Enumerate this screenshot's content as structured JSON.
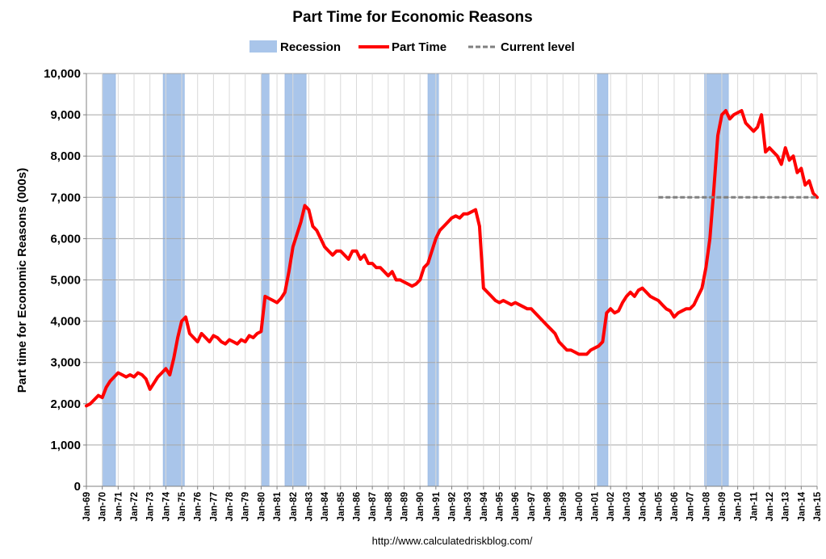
{
  "chart_data": {
    "type": "line",
    "title": "Part Time for Economic Reasons",
    "ylabel": "Part time for Economic Reasons (000s)",
    "xlabel": "",
    "ylim": [
      0,
      10000
    ],
    "xlim": [
      "1969-01",
      "2015-01"
    ],
    "yticks": [
      "0",
      "1,000",
      "2,000",
      "3,000",
      "4,000",
      "5,000",
      "6,000",
      "7,000",
      "8,000",
      "9,000",
      "10,000"
    ],
    "ytick_values": [
      0,
      1000,
      2000,
      3000,
      4000,
      5000,
      6000,
      7000,
      8000,
      9000,
      10000
    ],
    "xticks": [
      "Jan-69",
      "Jan-70",
      "Jan-71",
      "Jan-72",
      "Jan-73",
      "Jan-74",
      "Jan-75",
      "Jan-76",
      "Jan-77",
      "Jan-78",
      "Jan-79",
      "Jan-80",
      "Jan-81",
      "Jan-82",
      "Jan-83",
      "Jan-84",
      "Jan-85",
      "Jan-86",
      "Jan-87",
      "Jan-88",
      "Jan-89",
      "Jan-90",
      "Jan-91",
      "Jan-92",
      "Jan-93",
      "Jan-94",
      "Jan-95",
      "Jan-96",
      "Jan-97",
      "Jan-98",
      "Jan-99",
      "Jan-00",
      "Jan-01",
      "Jan-02",
      "Jan-03",
      "Jan-04",
      "Jan-05",
      "Jan-06",
      "Jan-07",
      "Jan-08",
      "Jan-09",
      "Jan-10",
      "Jan-11",
      "Jan-12",
      "Jan-13",
      "Jan-14",
      "Jan-15"
    ],
    "grid": true,
    "legend": {
      "placement": "top",
      "entries": [
        "Recession",
        "Part Time",
        "Current level"
      ]
    },
    "colors": {
      "recession": "#a9c5ea",
      "recession_edge": "#8fb2e0",
      "part_time": "#ff0000",
      "current_level": "#808080",
      "grid": "#bfbfbf"
    },
    "recessions": [
      {
        "start": "1970-01",
        "end": "1970-11"
      },
      {
        "start": "1973-11",
        "end": "1975-03"
      },
      {
        "start": "1980-01",
        "end": "1980-07"
      },
      {
        "start": "1981-07",
        "end": "1982-11"
      },
      {
        "start": "1990-07",
        "end": "1991-03"
      },
      {
        "start": "2001-03",
        "end": "2001-11"
      },
      {
        "start": "2007-12",
        "end": "2009-06"
      }
    ],
    "series": [
      {
        "name": "Part Time",
        "x": [
          "1969-01",
          "1969-04",
          "1969-07",
          "1969-10",
          "1970-01",
          "1970-04",
          "1970-07",
          "1970-10",
          "1971-01",
          "1971-04",
          "1971-07",
          "1971-10",
          "1972-01",
          "1972-04",
          "1972-07",
          "1972-10",
          "1973-01",
          "1973-04",
          "1973-07",
          "1973-10",
          "1974-01",
          "1974-04",
          "1974-07",
          "1974-10",
          "1975-01",
          "1975-04",
          "1975-07",
          "1975-10",
          "1976-01",
          "1976-04",
          "1976-07",
          "1976-10",
          "1977-01",
          "1977-04",
          "1977-07",
          "1977-10",
          "1978-01",
          "1978-04",
          "1978-07",
          "1978-10",
          "1979-01",
          "1979-04",
          "1979-07",
          "1979-10",
          "1980-01",
          "1980-04",
          "1980-07",
          "1980-10",
          "1981-01",
          "1981-04",
          "1981-07",
          "1981-10",
          "1982-01",
          "1982-04",
          "1982-07",
          "1982-10",
          "1983-01",
          "1983-04",
          "1983-07",
          "1983-10",
          "1984-01",
          "1984-04",
          "1984-07",
          "1984-10",
          "1985-01",
          "1985-04",
          "1985-07",
          "1985-10",
          "1986-01",
          "1986-04",
          "1986-07",
          "1986-10",
          "1987-01",
          "1987-04",
          "1987-07",
          "1987-10",
          "1988-01",
          "1988-04",
          "1988-07",
          "1988-10",
          "1989-01",
          "1989-04",
          "1989-07",
          "1989-10",
          "1990-01",
          "1990-04",
          "1990-07",
          "1990-10",
          "1991-01",
          "1991-04",
          "1991-07",
          "1991-10",
          "1992-01",
          "1992-04",
          "1992-07",
          "1992-10",
          "1993-01",
          "1993-04",
          "1993-07",
          "1993-10",
          "1994-01",
          "1994-04",
          "1994-07",
          "1994-10",
          "1995-01",
          "1995-04",
          "1995-07",
          "1995-10",
          "1996-01",
          "1996-04",
          "1996-07",
          "1996-10",
          "1997-01",
          "1997-04",
          "1997-07",
          "1997-10",
          "1998-01",
          "1998-04",
          "1998-07",
          "1998-10",
          "1999-01",
          "1999-04",
          "1999-07",
          "1999-10",
          "2000-01",
          "2000-04",
          "2000-07",
          "2000-10",
          "2001-01",
          "2001-04",
          "2001-07",
          "2001-10",
          "2002-01",
          "2002-04",
          "2002-07",
          "2002-10",
          "2003-01",
          "2003-04",
          "2003-07",
          "2003-10",
          "2004-01",
          "2004-04",
          "2004-07",
          "2004-10",
          "2005-01",
          "2005-04",
          "2005-07",
          "2005-10",
          "2006-01",
          "2006-04",
          "2006-07",
          "2006-10",
          "2007-01",
          "2007-04",
          "2007-07",
          "2007-10",
          "2008-01",
          "2008-04",
          "2008-07",
          "2008-10",
          "2009-01",
          "2009-04",
          "2009-07",
          "2009-10",
          "2010-01",
          "2010-04",
          "2010-07",
          "2010-10",
          "2011-01",
          "2011-04",
          "2011-07",
          "2011-10",
          "2012-01",
          "2012-04",
          "2012-07",
          "2012-10",
          "2013-01",
          "2013-04",
          "2013-07",
          "2013-10",
          "2014-01",
          "2014-04",
          "2014-07",
          "2014-10",
          "2015-01"
        ],
        "y": [
          1950,
          2000,
          2100,
          2200,
          2150,
          2400,
          2550,
          2650,
          2750,
          2700,
          2650,
          2700,
          2650,
          2750,
          2700,
          2600,
          2350,
          2500,
          2650,
          2750,
          2850,
          2700,
          3100,
          3600,
          4000,
          4100,
          3700,
          3600,
          3500,
          3700,
          3600,
          3500,
          3650,
          3600,
          3500,
          3450,
          3550,
          3500,
          3450,
          3550,
          3500,
          3650,
          3600,
          3700,
          3750,
          4600,
          4550,
          4500,
          4450,
          4550,
          4700,
          5200,
          5800,
          6100,
          6400,
          6800,
          6700,
          6300,
          6200,
          6000,
          5800,
          5700,
          5600,
          5700,
          5700,
          5600,
          5500,
          5700,
          5700,
          5500,
          5600,
          5400,
          5400,
          5300,
          5300,
          5200,
          5100,
          5200,
          5000,
          5000,
          4950,
          4900,
          4850,
          4900,
          5000,
          5300,
          5400,
          5700,
          6000,
          6200,
          6300,
          6400,
          6500,
          6550,
          6500,
          6600,
          6600,
          6650,
          6700,
          6300,
          4800,
          4700,
          4600,
          4500,
          4450,
          4500,
          4450,
          4400,
          4450,
          4400,
          4350,
          4300,
          4300,
          4200,
          4100,
          4000,
          3900,
          3800,
          3700,
          3500,
          3400,
          3300,
          3300,
          3250,
          3200,
          3200,
          3200,
          3300,
          3350,
          3400,
          3500,
          4200,
          4300,
          4200,
          4250,
          4450,
          4600,
          4700,
          4600,
          4750,
          4800,
          4700,
          4600,
          4550,
          4500,
          4400,
          4300,
          4250,
          4100,
          4200,
          4250,
          4300,
          4300,
          4400,
          4600,
          4800,
          5300,
          6000,
          7200,
          8500,
          9000,
          9100,
          8900,
          9000,
          9050,
          9100,
          8800,
          8700,
          8600,
          8700,
          9000,
          8100,
          8200,
          8100,
          8000,
          7800,
          8200,
          7900,
          8000,
          7600,
          7700,
          7300,
          7400,
          7100,
          7000
        ]
      },
      {
        "name": "Current level",
        "x": [
          "2005-01",
          "2015-01"
        ],
        "y": [
          7000,
          7000
        ]
      }
    ],
    "source_text": "http://www.calculatedriskblog.com/"
  }
}
